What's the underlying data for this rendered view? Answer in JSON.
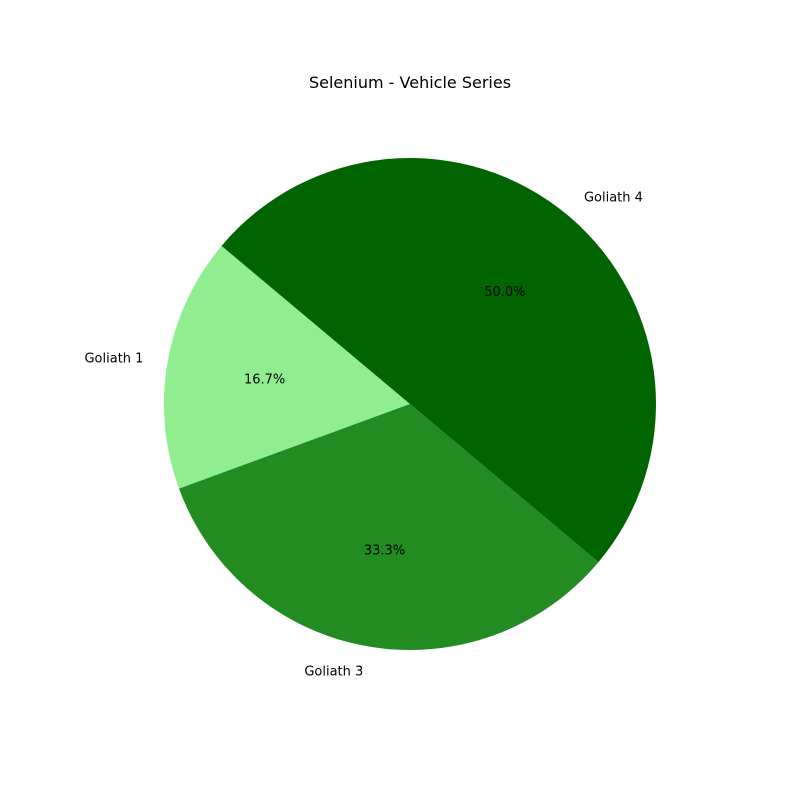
{
  "chart_data": {
    "type": "pie",
    "title": "Selenium - Vehicle Series",
    "categories": [
      "Goliath 1",
      "Goliath 3",
      "Goliath 4"
    ],
    "values": [
      16.7,
      33.3,
      50.0
    ],
    "percent_labels": [
      "16.7%",
      "33.3%",
      "50.0%"
    ],
    "colors": [
      "#90ee90",
      "#228b22",
      "#006400"
    ],
    "start_angle_deg": 140,
    "direction": "counterclockwise"
  }
}
